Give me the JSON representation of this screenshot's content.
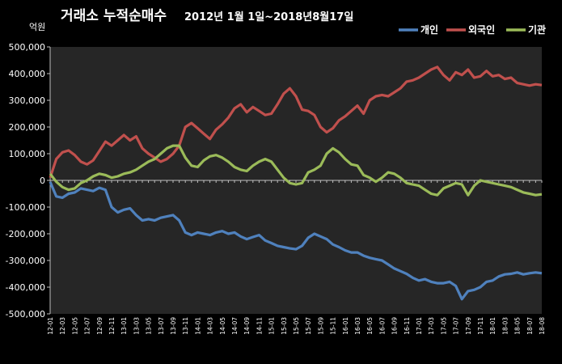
{
  "chart_data": {
    "type": "line",
    "title": "거래소 누적순매수",
    "subtitle": "2012년 1월 1일~2018년8월17일",
    "ylabel": "억원",
    "ylim": [
      -500000,
      500000
    ],
    "yticks": [
      "500,000",
      "400,000",
      "300,000",
      "200,000",
      "100,000",
      "0",
      "-100,000",
      "-200,000",
      "-300,000",
      "-400,000",
      "-500,000"
    ],
    "ytick_values": [
      500000,
      400000,
      300000,
      200000,
      100000,
      0,
      -100000,
      -200000,
      -300000,
      -400000,
      -500000
    ],
    "grid": false,
    "legend_position": "top-right",
    "x_labels": [
      "12-01",
      "12-03",
      "12-05",
      "12-07",
      "12-09",
      "12-11",
      "13-01",
      "13-03",
      "13-05",
      "13-07",
      "13-09",
      "13-11",
      "14-01",
      "14-03",
      "14-05",
      "14-07",
      "14-09",
      "14-11",
      "15-01",
      "15-03",
      "15-05",
      "15-07",
      "15-09",
      "15-11",
      "16-01",
      "16-03",
      "16-05",
      "16-07",
      "16-09",
      "16-11",
      "17-01",
      "17-03",
      "17-05",
      "17-07",
      "17-09",
      "17-11",
      "18-01",
      "18-03",
      "18-05",
      "18-07",
      "18-08"
    ],
    "x_months": [
      0,
      80
    ],
    "series": [
      {
        "name": "개인",
        "color": "#4f81bd",
        "points": [
          [
            0,
            -5000
          ],
          [
            1,
            -60000
          ],
          [
            2,
            -65000
          ],
          [
            3,
            -50000
          ],
          [
            4,
            -45000
          ],
          [
            5,
            -30000
          ],
          [
            6,
            -35000
          ],
          [
            7,
            -40000
          ],
          [
            8,
            -28000
          ],
          [
            9,
            -35000
          ],
          [
            10,
            -100000
          ],
          [
            11,
            -120000
          ],
          [
            12,
            -110000
          ],
          [
            13,
            -105000
          ],
          [
            14,
            -130000
          ],
          [
            15,
            -150000
          ],
          [
            16,
            -145000
          ],
          [
            17,
            -150000
          ],
          [
            18,
            -140000
          ],
          [
            19,
            -135000
          ],
          [
            20,
            -130000
          ],
          [
            21,
            -150000
          ],
          [
            22,
            -195000
          ],
          [
            23,
            -205000
          ],
          [
            24,
            -195000
          ],
          [
            25,
            -200000
          ],
          [
            26,
            -205000
          ],
          [
            27,
            -195000
          ],
          [
            28,
            -190000
          ],
          [
            29,
            -200000
          ],
          [
            30,
            -195000
          ],
          [
            31,
            -210000
          ],
          [
            32,
            -220000
          ],
          [
            33,
            -212000
          ],
          [
            34,
            -205000
          ],
          [
            35,
            -225000
          ],
          [
            36,
            -235000
          ],
          [
            37,
            -245000
          ],
          [
            38,
            -250000
          ],
          [
            39,
            -255000
          ],
          [
            40,
            -258000
          ],
          [
            41,
            -245000
          ],
          [
            42,
            -215000
          ],
          [
            43,
            -200000
          ],
          [
            44,
            -210000
          ],
          [
            45,
            -220000
          ],
          [
            46,
            -240000
          ],
          [
            47,
            -250000
          ],
          [
            48,
            -262000
          ],
          [
            49,
            -270000
          ],
          [
            50,
            -270000
          ],
          [
            51,
            -282000
          ],
          [
            52,
            -290000
          ],
          [
            53,
            -295000
          ],
          [
            54,
            -300000
          ],
          [
            55,
            -315000
          ],
          [
            56,
            -330000
          ],
          [
            57,
            -340000
          ],
          [
            58,
            -350000
          ],
          [
            59,
            -365000
          ],
          [
            60,
            -375000
          ],
          [
            61,
            -370000
          ],
          [
            62,
            -380000
          ],
          [
            63,
            -385000
          ],
          [
            64,
            -385000
          ],
          [
            65,
            -380000
          ],
          [
            66,
            -395000
          ],
          [
            67,
            -445000
          ],
          [
            68,
            -415000
          ],
          [
            69,
            -410000
          ],
          [
            70,
            -400000
          ],
          [
            71,
            -380000
          ],
          [
            72,
            -375000
          ],
          [
            73,
            -360000
          ],
          [
            74,
            -352000
          ],
          [
            75,
            -350000
          ],
          [
            76,
            -345000
          ],
          [
            77,
            -352000
          ],
          [
            78,
            -348000
          ],
          [
            79,
            -345000
          ],
          [
            80,
            -348000
          ]
        ]
      },
      {
        "name": "외국인",
        "color": "#c0504d",
        "points": [
          [
            0,
            10000
          ],
          [
            1,
            80000
          ],
          [
            2,
            105000
          ],
          [
            3,
            112000
          ],
          [
            4,
            95000
          ],
          [
            5,
            70000
          ],
          [
            6,
            60000
          ],
          [
            7,
            75000
          ],
          [
            8,
            110000
          ],
          [
            9,
            145000
          ],
          [
            10,
            130000
          ],
          [
            11,
            150000
          ],
          [
            12,
            170000
          ],
          [
            13,
            150000
          ],
          [
            14,
            165000
          ],
          [
            15,
            120000
          ],
          [
            16,
            100000
          ],
          [
            17,
            85000
          ],
          [
            18,
            70000
          ],
          [
            19,
            80000
          ],
          [
            20,
            100000
          ],
          [
            21,
            130000
          ],
          [
            22,
            200000
          ],
          [
            23,
            215000
          ],
          [
            24,
            195000
          ],
          [
            25,
            175000
          ],
          [
            26,
            155000
          ],
          [
            27,
            190000
          ],
          [
            28,
            210000
          ],
          [
            29,
            235000
          ],
          [
            30,
            270000
          ],
          [
            31,
            285000
          ],
          [
            32,
            255000
          ],
          [
            33,
            275000
          ],
          [
            34,
            260000
          ],
          [
            35,
            245000
          ],
          [
            36,
            250000
          ],
          [
            37,
            285000
          ],
          [
            38,
            325000
          ],
          [
            39,
            345000
          ],
          [
            40,
            315000
          ],
          [
            41,
            265000
          ],
          [
            42,
            260000
          ],
          [
            43,
            245000
          ],
          [
            44,
            200000
          ],
          [
            45,
            180000
          ],
          [
            46,
            195000
          ],
          [
            47,
            225000
          ],
          [
            48,
            240000
          ],
          [
            49,
            260000
          ],
          [
            50,
            280000
          ],
          [
            51,
            250000
          ],
          [
            52,
            300000
          ],
          [
            53,
            315000
          ],
          [
            54,
            320000
          ],
          [
            55,
            315000
          ],
          [
            56,
            330000
          ],
          [
            57,
            345000
          ],
          [
            58,
            370000
          ],
          [
            59,
            375000
          ],
          [
            60,
            385000
          ],
          [
            61,
            400000
          ],
          [
            62,
            415000
          ],
          [
            63,
            425000
          ],
          [
            64,
            395000
          ],
          [
            65,
            375000
          ],
          [
            66,
            405000
          ],
          [
            67,
            395000
          ],
          [
            68,
            415000
          ],
          [
            69,
            385000
          ],
          [
            70,
            390000
          ],
          [
            71,
            410000
          ],
          [
            72,
            390000
          ],
          [
            73,
            395000
          ],
          [
            74,
            380000
          ],
          [
            75,
            385000
          ],
          [
            76,
            365000
          ],
          [
            77,
            360000
          ],
          [
            78,
            355000
          ],
          [
            79,
            360000
          ],
          [
            80,
            357000
          ]
        ]
      },
      {
        "name": "기관",
        "color": "#9bbb59",
        "points": [
          [
            0,
            25000
          ],
          [
            1,
            -5000
          ],
          [
            2,
            -25000
          ],
          [
            3,
            -35000
          ],
          [
            4,
            -30000
          ],
          [
            5,
            -10000
          ],
          [
            6,
            0
          ],
          [
            7,
            15000
          ],
          [
            8,
            25000
          ],
          [
            9,
            20000
          ],
          [
            10,
            10000
          ],
          [
            11,
            15000
          ],
          [
            12,
            25000
          ],
          [
            13,
            30000
          ],
          [
            14,
            40000
          ],
          [
            15,
            55000
          ],
          [
            16,
            70000
          ],
          [
            17,
            80000
          ],
          [
            18,
            100000
          ],
          [
            19,
            120000
          ],
          [
            20,
            130000
          ],
          [
            21,
            130000
          ],
          [
            22,
            85000
          ],
          [
            23,
            55000
          ],
          [
            24,
            50000
          ],
          [
            25,
            75000
          ],
          [
            26,
            90000
          ],
          [
            27,
            95000
          ],
          [
            28,
            85000
          ],
          [
            29,
            70000
          ],
          [
            30,
            50000
          ],
          [
            31,
            40000
          ],
          [
            32,
            35000
          ],
          [
            33,
            55000
          ],
          [
            34,
            70000
          ],
          [
            35,
            80000
          ],
          [
            36,
            70000
          ],
          [
            37,
            40000
          ],
          [
            38,
            10000
          ],
          [
            39,
            -10000
          ],
          [
            40,
            -15000
          ],
          [
            41,
            -10000
          ],
          [
            42,
            30000
          ],
          [
            43,
            40000
          ],
          [
            44,
            55000
          ],
          [
            45,
            100000
          ],
          [
            46,
            120000
          ],
          [
            47,
            105000
          ],
          [
            48,
            80000
          ],
          [
            49,
            60000
          ],
          [
            50,
            55000
          ],
          [
            51,
            20000
          ],
          [
            52,
            10000
          ],
          [
            53,
            -5000
          ],
          [
            54,
            10000
          ],
          [
            55,
            30000
          ],
          [
            56,
            25000
          ],
          [
            57,
            10000
          ],
          [
            58,
            -10000
          ],
          [
            59,
            -15000
          ],
          [
            60,
            -20000
          ],
          [
            61,
            -35000
          ],
          [
            62,
            -50000
          ],
          [
            63,
            -55000
          ],
          [
            64,
            -30000
          ],
          [
            65,
            -20000
          ],
          [
            66,
            -10000
          ],
          [
            67,
            -15000
          ],
          [
            68,
            -55000
          ],
          [
            69,
            -20000
          ],
          [
            70,
            0
          ],
          [
            71,
            -5000
          ],
          [
            72,
            -10000
          ],
          [
            73,
            -15000
          ],
          [
            74,
            -20000
          ],
          [
            75,
            -25000
          ],
          [
            76,
            -35000
          ],
          [
            77,
            -45000
          ],
          [
            78,
            -50000
          ],
          [
            79,
            -55000
          ],
          [
            80,
            -52000
          ]
        ]
      }
    ]
  },
  "colors": {
    "background": "#000000",
    "plot_area": "#262626",
    "axis": "#bfbfbf"
  }
}
